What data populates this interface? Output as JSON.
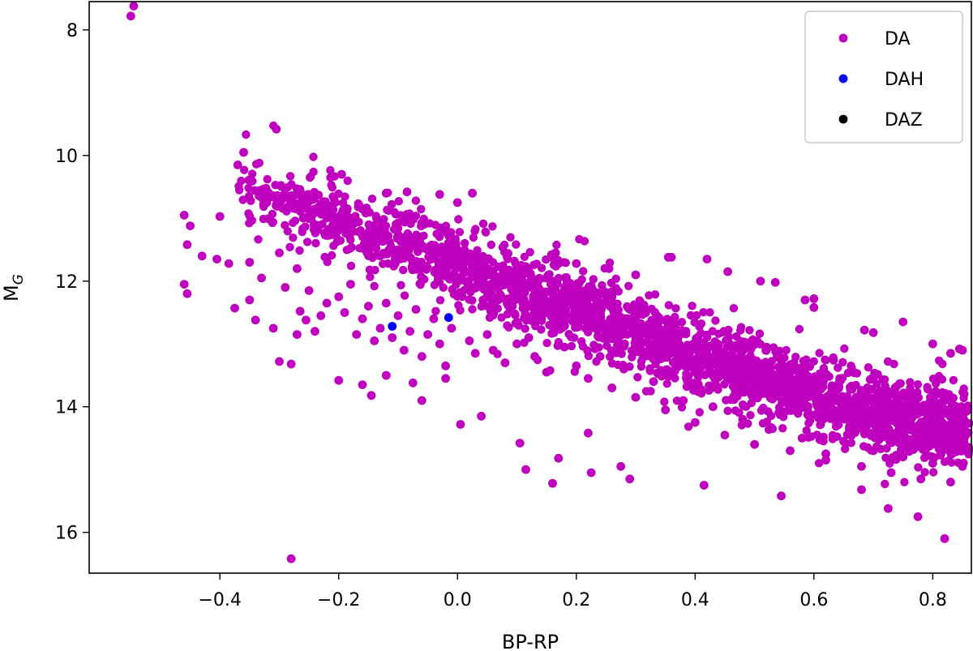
{
  "chart_data": {
    "type": "scatter",
    "title": "",
    "xlabel": "BP-RP",
    "ylabel": "M",
    "ylabel_sub": "G",
    "xlim": [
      -0.62,
      0.865
    ],
    "ylim": [
      16.65,
      7.55
    ],
    "y_inverted": true,
    "grid": false,
    "legend_position": "top-right",
    "x_ticks": [
      -0.4,
      -0.2,
      0.0,
      0.2,
      0.4,
      0.6,
      0.8
    ],
    "x_tick_labels": [
      "−0.4",
      "−0.2",
      "0.0",
      "0.2",
      "0.4",
      "0.6",
      "0.8"
    ],
    "y_ticks": [
      8,
      10,
      12,
      14,
      16
    ],
    "y_tick_labels": [
      "8",
      "10",
      "12",
      "14",
      "16"
    ],
    "series": [
      {
        "name": "DA",
        "color": "#bf00bf",
        "points": [
          [
            -0.545,
            7.62
          ],
          [
            -0.55,
            7.78
          ],
          [
            -0.305,
            9.58
          ],
          [
            -0.37,
            10.15
          ],
          [
            -0.36,
            9.95
          ],
          [
            -0.46,
            10.95
          ],
          [
            -0.45,
            11.12
          ],
          [
            -0.455,
            11.42
          ],
          [
            -0.4,
            10.97
          ],
          [
            -0.43,
            11.6
          ],
          [
            -0.405,
            11.65
          ],
          [
            -0.385,
            11.72
          ],
          [
            -0.46,
            12.05
          ],
          [
            -0.455,
            12.2
          ],
          [
            -0.375,
            12.43
          ],
          [
            -0.35,
            12.3
          ],
          [
            -0.34,
            12.62
          ],
          [
            -0.31,
            12.75
          ],
          [
            -0.3,
            13.28
          ],
          [
            -0.28,
            13.32
          ],
          [
            -0.27,
            12.85
          ],
          [
            -0.265,
            12.48
          ],
          [
            -0.255,
            12.62
          ],
          [
            -0.28,
            16.42
          ],
          [
            -0.2,
            13.58
          ],
          [
            -0.16,
            13.65
          ],
          [
            -0.145,
            13.82
          ],
          [
            -0.12,
            13.5
          ],
          [
            -0.06,
            13.9
          ],
          [
            -0.075,
            13.62
          ],
          [
            -0.02,
            13.55
          ],
          [
            0.005,
            14.28
          ],
          [
            0.04,
            14.15
          ],
          [
            0.105,
            14.58
          ],
          [
            0.115,
            15.0
          ],
          [
            0.17,
            14.82
          ],
          [
            0.16,
            15.22
          ],
          [
            0.22,
            14.42
          ],
          [
            0.225,
            15.05
          ],
          [
            0.275,
            14.95
          ],
          [
            0.29,
            15.15
          ],
          [
            0.415,
            15.25
          ],
          [
            0.545,
            15.42
          ],
          [
            0.62,
            14.85
          ],
          [
            0.68,
            15.32
          ],
          [
            0.725,
            15.62
          ],
          [
            0.775,
            15.75
          ],
          [
            0.82,
            16.1
          ],
          [
            -0.195,
            10.3
          ],
          [
            -0.12,
            10.6
          ],
          [
            -0.085,
            10.58
          ],
          [
            -0.03,
            10.62
          ],
          [
            0.0,
            10.75
          ],
          [
            0.025,
            10.6
          ],
          [
            0.165,
            11.55
          ],
          [
            0.2,
            11.72
          ],
          [
            0.255,
            11.8
          ],
          [
            0.3,
            11.9
          ],
          [
            0.355,
            11.62
          ],
          [
            0.36,
            11.62
          ],
          [
            0.42,
            11.65
          ],
          [
            0.455,
            11.85
          ],
          [
            0.51,
            12.0
          ],
          [
            0.535,
            12.02
          ],
          [
            0.585,
            12.3
          ],
          [
            0.6,
            12.28
          ],
          [
            0.6,
            12.42
          ],
          [
            0.685,
            12.78
          ],
          [
            0.7,
            12.82
          ],
          [
            0.75,
            12.65
          ],
          [
            0.8,
            13.0
          ],
          [
            0.83,
            13.15
          ],
          [
            0.845,
            13.08
          ],
          [
            0.85,
            13.1
          ],
          [
            -0.35,
            11.7
          ],
          [
            -0.33,
            11.95
          ],
          [
            -0.3,
            11.55
          ],
          [
            -0.29,
            12.1
          ],
          [
            -0.27,
            11.8
          ],
          [
            -0.25,
            12.15
          ],
          [
            -0.24,
            12.8
          ],
          [
            -0.23,
            12.55
          ],
          [
            -0.22,
            12.35
          ],
          [
            -0.2,
            12.25
          ],
          [
            -0.19,
            12.5
          ],
          [
            -0.18,
            12.05
          ],
          [
            -0.17,
            12.85
          ],
          [
            -0.16,
            12.6
          ],
          [
            -0.15,
            12.4
          ],
          [
            -0.14,
            12.95
          ],
          [
            -0.13,
            12.75
          ],
          [
            -0.12,
            12.35
          ],
          [
            -0.11,
            12.9
          ],
          [
            -0.1,
            12.55
          ],
          [
            -0.09,
            13.1
          ],
          [
            -0.08,
            12.8
          ],
          [
            -0.07,
            12.45
          ],
          [
            -0.06,
            13.2
          ],
          [
            -0.05,
            12.85
          ],
          [
            -0.04,
            12.6
          ],
          [
            -0.03,
            13.0
          ],
          [
            -0.02,
            13.35
          ],
          [
            -0.01,
            12.75
          ],
          [
            0.02,
            12.95
          ],
          [
            0.03,
            13.15
          ],
          [
            0.05,
            12.85
          ],
          [
            0.06,
            13.1
          ],
          [
            0.08,
            13.3
          ],
          [
            0.1,
            13.0
          ],
          [
            0.12,
            12.9
          ],
          [
            0.13,
            13.2
          ],
          [
            0.15,
            13.45
          ],
          [
            0.18,
            13.05
          ],
          [
            0.2,
            13.35
          ],
          [
            0.22,
            13.55
          ],
          [
            0.24,
            13.2
          ],
          [
            0.26,
            13.7
          ],
          [
            0.28,
            13.4
          ],
          [
            0.3,
            13.85
          ],
          [
            0.33,
            13.6
          ],
          [
            0.35,
            14.05
          ],
          [
            0.38,
            13.9
          ],
          [
            0.4,
            14.25
          ],
          [
            0.43,
            14.0
          ],
          [
            0.45,
            14.45
          ],
          [
            0.48,
            14.2
          ],
          [
            0.5,
            14.6
          ],
          [
            0.53,
            14.35
          ],
          [
            0.56,
            14.7
          ],
          [
            0.58,
            14.5
          ],
          [
            0.62,
            14.75
          ],
          [
            0.65,
            14.55
          ],
          [
            0.68,
            14.95
          ],
          [
            0.7,
            14.7
          ],
          [
            0.73,
            15.05
          ],
          [
            0.75,
            14.8
          ],
          [
            0.78,
            15.15
          ],
          [
            0.8,
            14.9
          ],
          [
            0.83,
            15.2
          ],
          [
            0.85,
            14.95
          ]
        ]
      },
      {
        "name": "DAH",
        "color": "#0000ff",
        "points": [
          [
            -0.11,
            12.72
          ],
          [
            -0.015,
            12.58
          ]
        ]
      },
      {
        "name": "DAZ",
        "color": "#000000",
        "points": []
      }
    ],
    "main_sequence": {
      "description_only_for_rendering": false,
      "trend": [
        [
          -0.37,
          10.45
        ],
        [
          -0.2,
          11.05
        ],
        [
          0.0,
          11.75
        ],
        [
          0.2,
          12.45
        ],
        [
          0.4,
          13.2
        ],
        [
          0.6,
          13.85
        ],
        [
          0.8,
          14.3
        ],
        [
          0.86,
          14.45
        ]
      ]
    }
  }
}
